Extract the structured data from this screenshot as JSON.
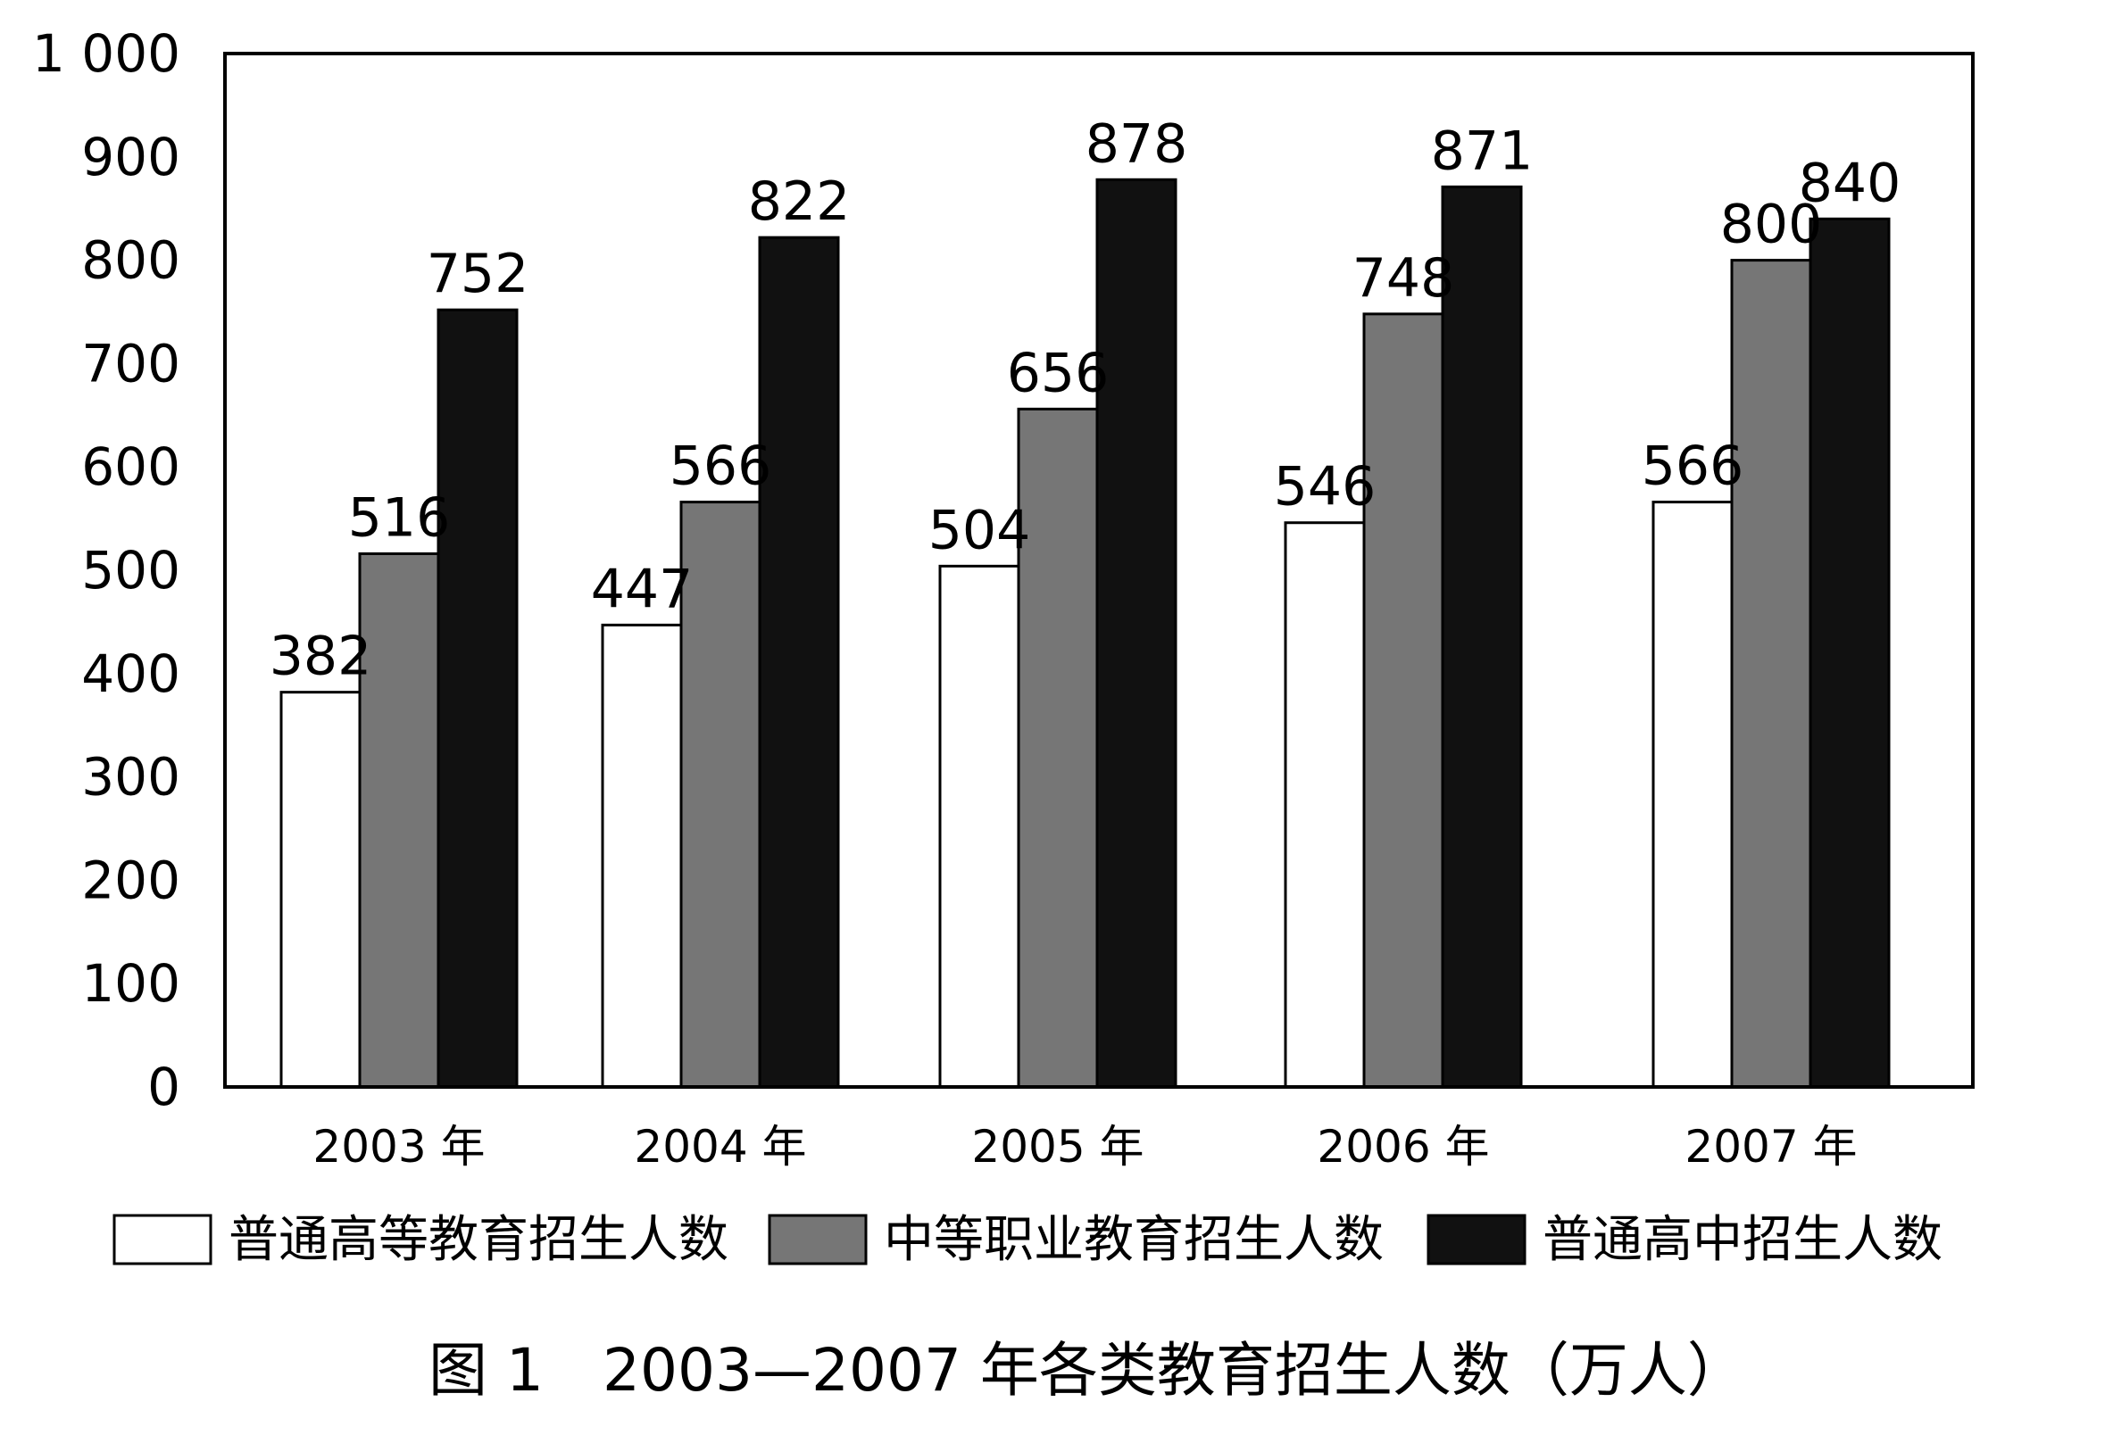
{
  "chart_data": {
    "type": "bar",
    "categories": [
      "2003 年",
      "2004 年",
      "2005 年",
      "2006 年",
      "2007 年"
    ],
    "series": [
      {
        "name": "普通高等教育招生人数",
        "values": [
          382,
          447,
          504,
          546,
          566
        ],
        "color": "#ffffff"
      },
      {
        "name": "中等职业教育招生人数",
        "values": [
          516,
          566,
          656,
          748,
          800
        ],
        "color": "#767676"
      },
      {
        "name": "普通高中招生人数",
        "values": [
          752,
          822,
          878,
          871,
          840
        ],
        "color": "#111111"
      }
    ],
    "ylim": [
      0,
      1000
    ],
    "yticks": [
      0,
      100,
      200,
      300,
      400,
      500,
      600,
      700,
      800,
      900,
      1000
    ],
    "ytick_labels": [
      "0",
      "100",
      "200",
      "300",
      "400",
      "500",
      "600",
      "700",
      "800",
      "900",
      "1 000"
    ],
    "grid": false,
    "legend_position": "bottom",
    "title": "图 1　2003—2007 年各类教育招生人数（万人）",
    "xlabel": "",
    "ylabel": ""
  }
}
